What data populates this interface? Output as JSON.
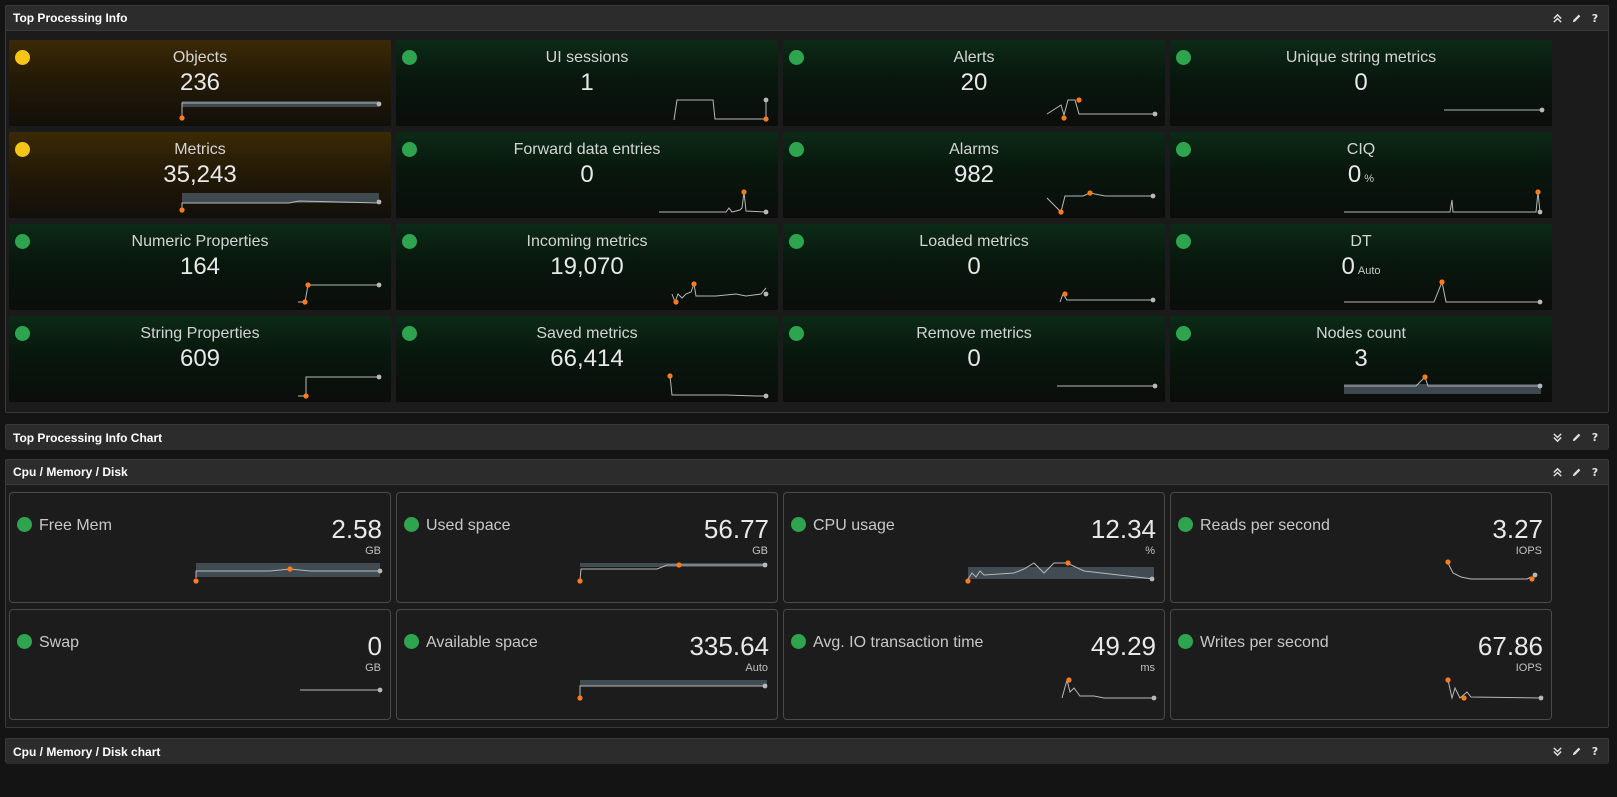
{
  "colors": {
    "ok": "#2fa44f",
    "warning": "#f5c518",
    "spark_marker": "#ff7a1a"
  },
  "panels": {
    "top": {
      "title": "Top Processing Info",
      "icons": [
        "collapse-icon",
        "edit-icon",
        "help-icon"
      ]
    },
    "top_chart": {
      "title": "Top Processing Info Chart",
      "icons": [
        "expand-icon",
        "edit-icon",
        "help-icon"
      ]
    },
    "cpu": {
      "title": "Cpu / Memory / Disk",
      "icons": [
        "collapse-icon",
        "edit-icon",
        "help-icon"
      ]
    },
    "cpu_chart": {
      "title": "Cpu / Memory / Disk chart",
      "icons": [
        "expand-icon",
        "edit-icon",
        "help-icon"
      ]
    }
  },
  "help_glyph": "?",
  "tiles": [
    {
      "label": "Objects",
      "value": "236",
      "unit": "",
      "status": "warning"
    },
    {
      "label": "UI sessions",
      "value": "1",
      "unit": "",
      "status": "ok"
    },
    {
      "label": "Alerts",
      "value": "20",
      "unit": "",
      "status": "ok"
    },
    {
      "label": "Unique string metrics",
      "value": "0",
      "unit": "",
      "status": "ok"
    },
    {
      "label": "Metrics",
      "value": "35,243",
      "unit": "",
      "status": "warning"
    },
    {
      "label": "Forward data entries",
      "value": "0",
      "unit": "",
      "status": "ok"
    },
    {
      "label": "Alarms",
      "value": "982",
      "unit": "",
      "status": "ok"
    },
    {
      "label": "CIQ",
      "value": "0",
      "unit": "%",
      "status": "ok"
    },
    {
      "label": "Numeric Properties",
      "value": "164",
      "unit": "",
      "status": "ok"
    },
    {
      "label": "Incoming metrics",
      "value": "19,070",
      "unit": "",
      "status": "ok"
    },
    {
      "label": "Loaded metrics",
      "value": "0",
      "unit": "",
      "status": "ok"
    },
    {
      "label": "DT",
      "value": "0",
      "unit": "Auto",
      "status": "ok"
    },
    {
      "label": "String Properties",
      "value": "609",
      "unit": "",
      "status": "ok"
    },
    {
      "label": "Saved metrics",
      "value": "66,414",
      "unit": "",
      "status": "ok"
    },
    {
      "label": "Remove metrics",
      "value": "0",
      "unit": "",
      "status": "ok"
    },
    {
      "label": "Nodes count",
      "value": "3",
      "unit": "",
      "status": "ok"
    }
  ],
  "resources": [
    {
      "label": "Free Mem",
      "value": "2.58",
      "unit": "GB",
      "status": "ok"
    },
    {
      "label": "Used space",
      "value": "56.77",
      "unit": "GB",
      "status": "ok"
    },
    {
      "label": "CPU usage",
      "value": "12.34",
      "unit": "%",
      "status": "ok"
    },
    {
      "label": "Reads per second",
      "value": "3.27",
      "unit": "IOPS",
      "status": "ok"
    },
    {
      "label": "Swap",
      "value": "0",
      "unit": "GB",
      "status": "ok"
    },
    {
      "label": "Available space",
      "value": "335.64",
      "unit": "Auto",
      "status": "ok"
    },
    {
      "label": "Avg. IO transaction time",
      "value": "49.29",
      "unit": "ms",
      "status": "ok"
    },
    {
      "label": "Writes per second",
      "value": "67.86",
      "unit": "IOPS",
      "status": "ok"
    }
  ]
}
